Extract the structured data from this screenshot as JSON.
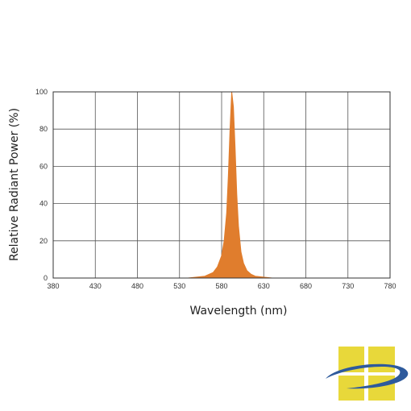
{
  "chart_data": {
    "type": "area",
    "xlabel": "Wavelength (nm)",
    "ylabel": "Relative Radiant Power (%)",
    "xlim": [
      380,
      780
    ],
    "ylim": [
      0,
      100
    ],
    "xticks": [
      380,
      430,
      480,
      530,
      580,
      630,
      680,
      730,
      780
    ],
    "yticks": [
      0,
      20,
      40,
      60,
      80,
      100
    ],
    "grid": true,
    "series": [
      {
        "color": "#e07d2d",
        "x": [
          380,
          540,
          560,
          570,
          575,
          580,
          583,
          586,
          588,
          590,
          592,
          594,
          596,
          598,
          600,
          603,
          606,
          610,
          615,
          620,
          630,
          640,
          660,
          780
        ],
        "y": [
          0,
          0,
          1,
          3,
          6,
          12,
          20,
          35,
          55,
          80,
          100,
          92,
          70,
          45,
          28,
          14,
          8,
          4,
          2,
          1,
          0.5,
          0,
          0,
          0
        ]
      }
    ]
  },
  "logo": {
    "icon": "company-logo",
    "square_color": "#e8d83a",
    "swoosh_color": "#2e5a9c"
  }
}
